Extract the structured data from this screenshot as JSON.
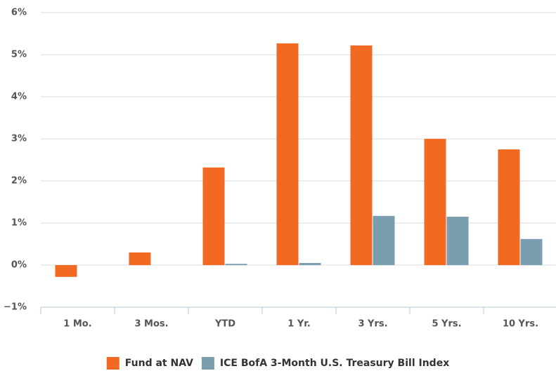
{
  "chart_data": {
    "type": "bar",
    "categories": [
      "1 Mo.",
      "3 Mos.",
      "YTD",
      "1 Yr.",
      "3 Yrs.",
      "5 Yrs.",
      "10 Yrs."
    ],
    "series": [
      {
        "name": "Fund at NAV",
        "color": "#f26a21",
        "values": [
          -0.28,
          0.3,
          2.32,
          5.27,
          5.22,
          3.0,
          2.75
        ]
      },
      {
        "name": "ICE BofA 3-Month U.S. Treasury Bill Index",
        "color": "#7a9db0",
        "values": [
          0,
          0,
          0.03,
          0.05,
          1.17,
          1.15,
          0.62
        ]
      }
    ],
    "ylim": [
      -1,
      6
    ],
    "yticks": [
      {
        "value": -1,
        "label": "−1%"
      },
      {
        "value": 0,
        "label": "0%"
      },
      {
        "value": 1,
        "label": "1%"
      },
      {
        "value": 2,
        "label": "2%"
      },
      {
        "value": 3,
        "label": "3%"
      },
      {
        "value": 4,
        "label": "4%"
      },
      {
        "value": 5,
        "label": "5%"
      },
      {
        "value": 6,
        "label": "6%"
      }
    ],
    "grid": true,
    "legend": "bottom"
  }
}
